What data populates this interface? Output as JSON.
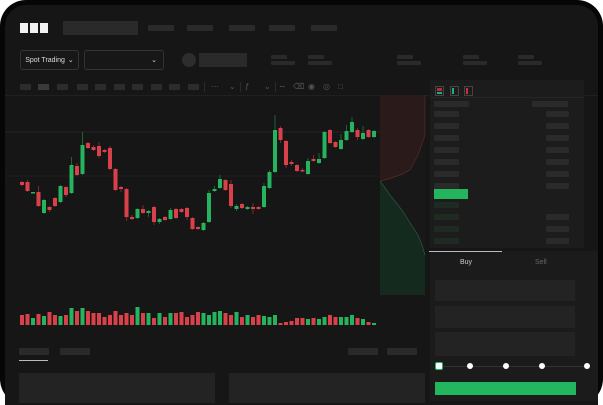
{
  "brand": {
    "logo_text": "OKX"
  },
  "header": {
    "mode_select": {
      "label": "Spot Trading",
      "icon": "chevron-down-icon"
    },
    "pair_select": {
      "icon": "chevron-down-icon"
    }
  },
  "toolbar": {
    "icons": [
      "candle-type-icon",
      "chevron-down-icon",
      "indicator-icon",
      "chevron-down-icon",
      "line-icon",
      "ruler-icon",
      "camera-icon",
      "settings-icon",
      "fullscreen-icon"
    ]
  },
  "orderbook": {
    "view_icons": [
      "book-both-icon",
      "book-bids-icon",
      "book-asks-icon"
    ]
  },
  "trade": {
    "tabs": [
      {
        "label": "Buy",
        "active": true
      },
      {
        "label": "Sell",
        "active": false
      }
    ],
    "slider_percent": 0,
    "slider_steps": [
      0,
      25,
      50,
      75,
      100
    ]
  },
  "colors": {
    "up": "#25b35e",
    "down": "#d9414a",
    "background": "#161616",
    "panel": "#1c1c1c",
    "accent": "#22b75f"
  },
  "chart_data": {
    "type": "candlestick",
    "candles": [
      [
        68,
        69,
        64,
        65
      ],
      [
        68,
        70,
        58,
        59
      ],
      [
        57,
        58,
        57,
        58
      ],
      [
        58,
        64,
        43,
        44
      ],
      [
        37,
        51,
        36,
        50
      ],
      [
        43,
        44,
        38,
        40
      ],
      [
        52,
        53,
        43,
        44
      ],
      [
        48,
        65,
        47,
        64
      ],
      [
        63,
        64,
        53,
        55
      ],
      [
        57,
        93,
        56,
        85
      ],
      [
        84,
        87,
        74,
        75
      ],
      [
        76,
        118,
        75,
        105
      ],
      [
        107,
        108,
        101,
        102
      ],
      [
        103,
        105,
        99,
        100
      ],
      [
        104,
        108,
        92,
        94
      ],
      [
        100,
        101,
        97,
        98
      ],
      [
        102,
        104,
        80,
        81
      ],
      [
        81,
        82,
        59,
        60
      ],
      [
        63,
        64,
        58,
        61
      ],
      [
        61,
        62,
        29,
        33
      ],
      [
        33,
        35,
        30,
        31
      ],
      [
        32,
        42,
        31,
        41
      ],
      [
        41,
        45,
        36,
        37
      ],
      [
        37,
        40,
        33,
        39
      ],
      [
        43,
        44,
        25,
        28
      ],
      [
        28,
        32,
        26,
        31
      ],
      [
        33,
        34,
        29,
        30
      ],
      [
        31,
        42,
        30,
        40
      ],
      [
        41,
        42,
        31,
        32
      ],
      [
        41,
        42,
        37,
        38
      ],
      [
        42,
        43,
        30,
        33
      ],
      [
        32,
        33,
        20,
        21
      ],
      [
        23,
        24,
        20,
        21
      ],
      [
        20,
        28,
        19,
        27
      ],
      [
        28,
        60,
        27,
        57
      ],
      [
        59,
        64,
        58,
        61
      ],
      [
        62,
        75,
        61,
        71
      ],
      [
        70,
        71,
        59,
        60
      ],
      [
        66,
        70,
        42,
        44
      ],
      [
        41,
        46,
        39,
        44
      ],
      [
        46,
        47,
        41,
        42
      ],
      [
        41,
        44,
        40,
        43
      ],
      [
        43,
        47,
        36,
        41
      ],
      [
        43,
        44,
        40,
        41
      ],
      [
        43,
        67,
        42,
        64
      ],
      [
        62,
        80,
        61,
        78
      ],
      [
        78,
        135,
        77,
        120
      ],
      [
        122,
        124,
        107,
        110
      ],
      [
        109,
        110,
        82,
        85
      ],
      [
        88,
        90,
        84,
        86
      ],
      [
        85,
        86,
        78,
        79
      ],
      [
        80,
        82,
        78,
        79
      ],
      [
        76,
        92,
        75,
        89
      ],
      [
        91,
        95,
        88,
        89
      ],
      [
        87,
        97,
        86,
        91
      ],
      [
        92,
        119,
        91,
        118
      ],
      [
        120,
        121,
        106,
        107
      ],
      [
        108,
        109,
        102,
        103
      ],
      [
        101,
        116,
        100,
        110
      ],
      [
        110,
        125,
        109,
        119
      ],
      [
        118,
        133,
        117,
        128
      ],
      [
        120,
        122,
        110,
        113
      ],
      [
        111,
        124,
        110,
        117
      ],
      [
        120,
        121,
        112,
        113
      ],
      [
        113,
        120,
        112,
        119
      ]
    ],
    "volume": [
      10,
      11,
      7,
      11,
      9,
      13,
      10,
      9,
      10,
      17,
      14,
      17,
      14,
      12,
      12,
      8,
      10,
      14,
      10,
      12,
      10,
      18,
      12,
      12,
      7,
      12,
      8,
      12,
      12,
      13,
      8,
      10,
      13,
      12,
      10,
      13,
      14,
      12,
      10,
      13,
      8,
      10,
      8,
      10,
      9,
      8,
      10,
      2,
      3,
      4,
      7,
      7,
      6,
      7,
      6,
      8,
      10,
      8,
      8,
      8,
      10,
      7,
      6,
      3,
      2
    ]
  }
}
